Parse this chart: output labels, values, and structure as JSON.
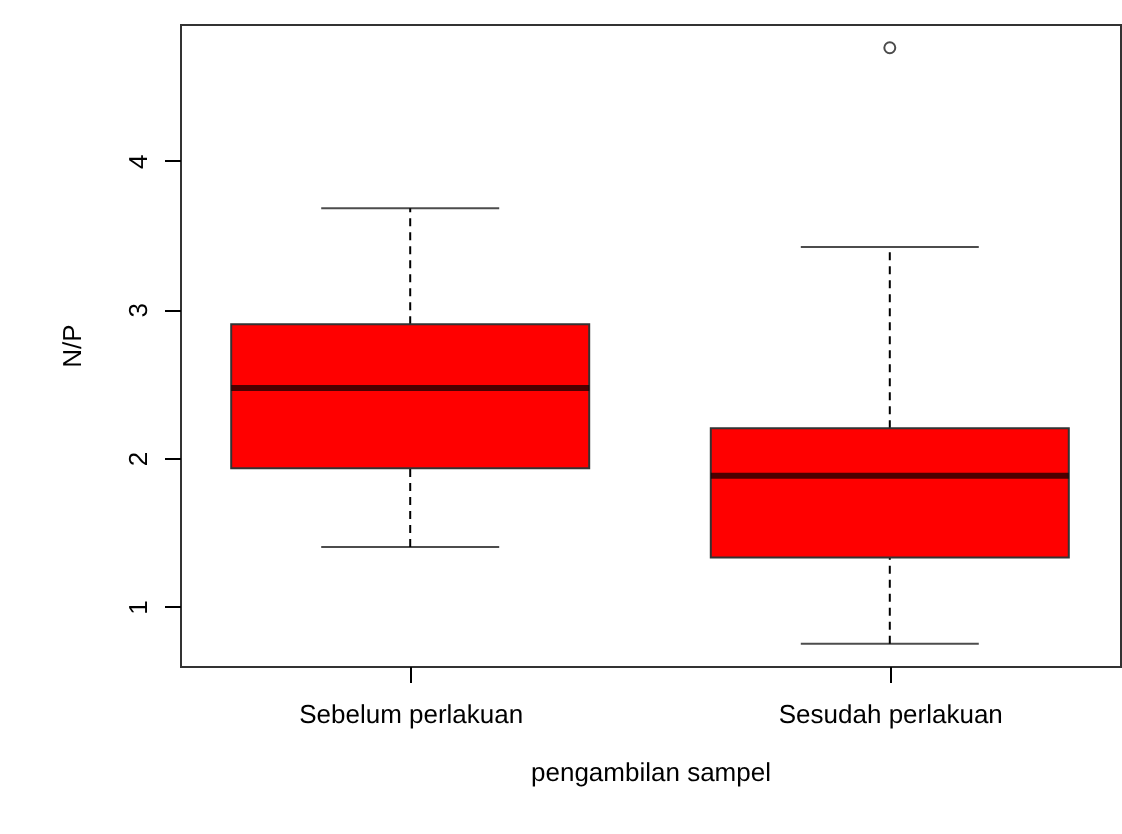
{
  "chart_data": {
    "type": "box",
    "xlabel": "pengambilan sampel",
    "ylabel": "N/P",
    "categories": [
      "Sebelum perlakuan",
      "Sesudah perlakuan"
    ],
    "boxes": [
      {
        "low": 1.4,
        "q1": 1.93,
        "median": 2.47,
        "q3": 2.9,
        "high": 3.68
      },
      {
        "low": 0.75,
        "q1": 1.33,
        "median": 1.88,
        "q3": 2.2,
        "high": 3.42,
        "outliers": [
          4.76
        ]
      }
    ],
    "color": "#ff0000",
    "ylim": [
      0.6,
      4.92
    ],
    "yticks": [
      1,
      2,
      3,
      4
    ]
  }
}
